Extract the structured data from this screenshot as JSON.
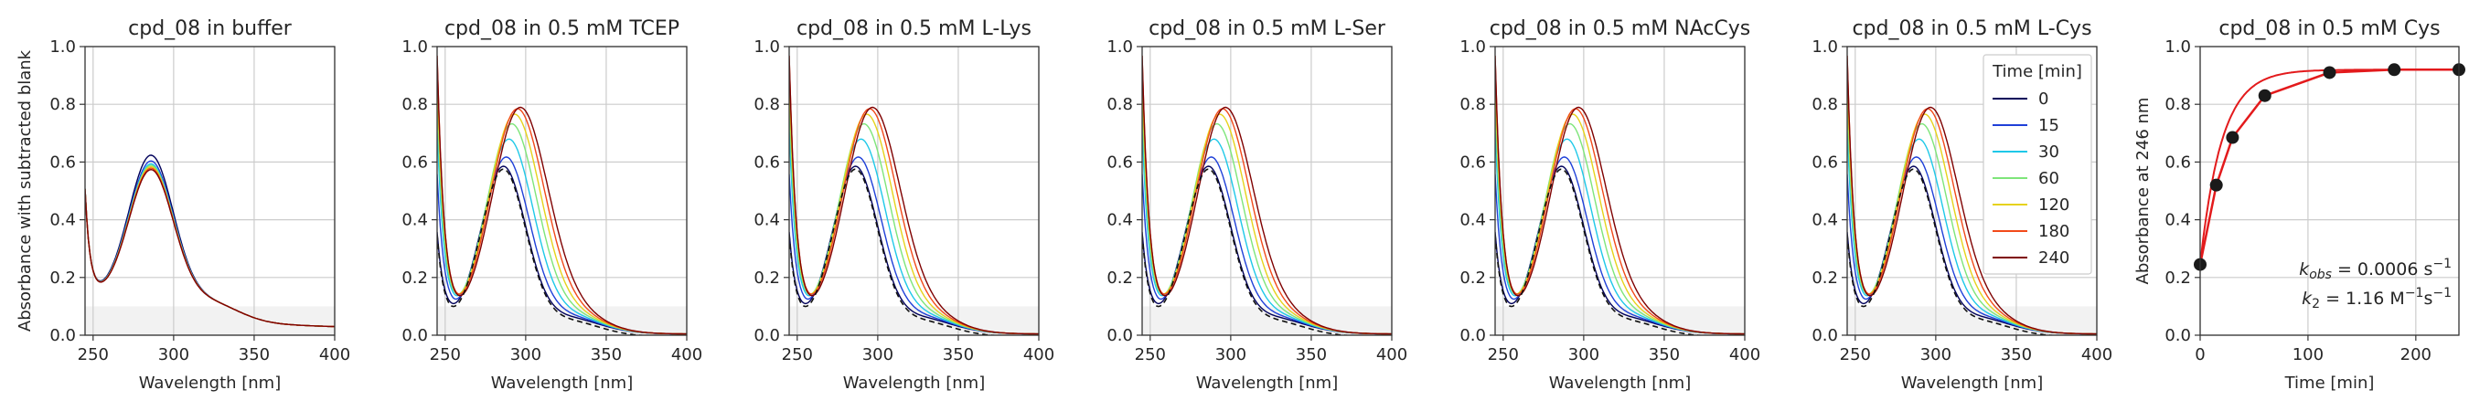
{
  "colors": {
    "time_series": [
      "#00005a",
      "#1f40d8",
      "#1ec8e8",
      "#7ee57a",
      "#e6d21c",
      "#f24a1a",
      "#7f0000"
    ],
    "kinetics_line": "#e31a1c",
    "kinetics_points": "#1a1a1a",
    "grid": "#cccccc",
    "blank_band": "#f2f2f2"
  },
  "chart_data": [
    {
      "type": "line",
      "title": "cpd_08 in buffer",
      "xlabel": "Wavelength [nm]",
      "ylabel": "Absorbance with subtracted blank",
      "xlim": [
        245,
        400
      ],
      "ylim": [
        0,
        1.0
      ],
      "xticks": [
        "250",
        "300",
        "350",
        "400"
      ],
      "yticks": [
        "0.0",
        "0.2",
        "0.4",
        "0.6",
        "0.8",
        "1.0"
      ],
      "grid": true,
      "shaded_band_y": [
        0,
        0.1
      ],
      "series": [
        {
          "peak": 0.59,
          "tail": 0.3
        },
        {
          "peak": 0.57,
          "tail": 0.3
        },
        {
          "peak": 0.56,
          "tail": 0.3
        },
        {
          "peak": 0.555,
          "tail": 0.3
        },
        {
          "peak": 0.55,
          "tail": 0.3
        },
        {
          "peak": 0.545,
          "tail": 0.3
        },
        {
          "peak": 0.54,
          "tail": 0.3
        }
      ]
    },
    {
      "type": "line",
      "title": "cpd_08 in 0.5 mM TCEP",
      "xlabel": "Wavelength [nm]",
      "ylabel": "",
      "xlim": [
        245,
        400
      ],
      "ylim": [
        0,
        1.0
      ],
      "xticks": [
        "250",
        "300",
        "350",
        "400"
      ],
      "yticks": [
        "0.0",
        "0.2",
        "0.4",
        "0.6",
        "0.8",
        "1.0"
      ],
      "grid": true,
      "shaded_band_y": [
        0,
        0.1
      ],
      "series": [
        {
          "peak": 0.6,
          "tail": 0.32
        },
        {
          "peak": 0.63,
          "tail": 0.52
        },
        {
          "peak": 0.69,
          "tail": 0.68
        },
        {
          "peak": 0.74,
          "tail": 0.78
        },
        {
          "peak": 0.77,
          "tail": 0.86
        },
        {
          "peak": 0.785,
          "tail": 0.93
        },
        {
          "peak": 0.785,
          "tail": 0.93
        }
      ]
    },
    {
      "type": "line",
      "title": "cpd_08 in 0.5 mM L-Lys",
      "xlabel": "Wavelength [nm]",
      "ylabel": "",
      "xlim": [
        245,
        400
      ],
      "ylim": [
        0,
        1.0
      ],
      "xticks": [
        "250",
        "300",
        "350",
        "400"
      ],
      "yticks": [
        "0.0",
        "0.2",
        "0.4",
        "0.6",
        "0.8",
        "1.0"
      ],
      "grid": true,
      "shaded_band_y": [
        0,
        0.1
      ],
      "series": [
        {
          "peak": 0.6,
          "tail": 0.32
        },
        {
          "peak": 0.63,
          "tail": 0.52
        },
        {
          "peak": 0.69,
          "tail": 0.68
        },
        {
          "peak": 0.74,
          "tail": 0.78
        },
        {
          "peak": 0.77,
          "tail": 0.86
        },
        {
          "peak": 0.785,
          "tail": 0.93
        },
        {
          "peak": 0.785,
          "tail": 0.93
        }
      ]
    },
    {
      "type": "line",
      "title": "cpd_08 in 0.5 mM L-Ser",
      "xlabel": "Wavelength [nm]",
      "ylabel": "",
      "xlim": [
        245,
        400
      ],
      "ylim": [
        0,
        1.0
      ],
      "xticks": [
        "250",
        "300",
        "350",
        "400"
      ],
      "yticks": [
        "0.0",
        "0.2",
        "0.4",
        "0.6",
        "0.8",
        "1.0"
      ],
      "grid": true,
      "shaded_band_y": [
        0,
        0.1
      ],
      "series": [
        {
          "peak": 0.6,
          "tail": 0.32
        },
        {
          "peak": 0.63,
          "tail": 0.52
        },
        {
          "peak": 0.69,
          "tail": 0.68
        },
        {
          "peak": 0.74,
          "tail": 0.78
        },
        {
          "peak": 0.77,
          "tail": 0.86
        },
        {
          "peak": 0.785,
          "tail": 0.93
        },
        {
          "peak": 0.785,
          "tail": 0.93
        }
      ]
    },
    {
      "type": "line",
      "title": "cpd_08 in 0.5 mM NAcCys",
      "xlabel": "Wavelength [nm]",
      "ylabel": "",
      "xlim": [
        245,
        400
      ],
      "ylim": [
        0,
        1.0
      ],
      "xticks": [
        "250",
        "300",
        "350",
        "400"
      ],
      "yticks": [
        "0.0",
        "0.2",
        "0.4",
        "0.6",
        "0.8",
        "1.0"
      ],
      "grid": true,
      "shaded_band_y": [
        0,
        0.1
      ],
      "series": [
        {
          "peak": 0.6,
          "tail": 0.32
        },
        {
          "peak": 0.63,
          "tail": 0.52
        },
        {
          "peak": 0.69,
          "tail": 0.68
        },
        {
          "peak": 0.74,
          "tail": 0.78
        },
        {
          "peak": 0.77,
          "tail": 0.86
        },
        {
          "peak": 0.785,
          "tail": 0.93
        },
        {
          "peak": 0.785,
          "tail": 0.93
        }
      ]
    },
    {
      "type": "line",
      "title": "cpd_08 in 0.5 mM L-Cys",
      "xlabel": "Wavelength [nm]",
      "ylabel": "",
      "xlim": [
        245,
        400
      ],
      "ylim": [
        0,
        1.0
      ],
      "xticks": [
        "250",
        "300",
        "350",
        "400"
      ],
      "yticks": [
        "0.0",
        "0.2",
        "0.4",
        "0.6",
        "0.8",
        "1.0"
      ],
      "grid": true,
      "shaded_band_y": [
        0,
        0.1
      ],
      "legend": {
        "title": "Time [min]",
        "placement": "top-right",
        "entries": [
          "0",
          "15",
          "30",
          "60",
          "120",
          "180",
          "240"
        ]
      },
      "series": [
        {
          "name": "0",
          "peak": 0.6,
          "tail": 0.32
        },
        {
          "name": "15",
          "peak": 0.63,
          "tail": 0.52
        },
        {
          "name": "30",
          "peak": 0.69,
          "tail": 0.68
        },
        {
          "name": "60",
          "peak": 0.74,
          "tail": 0.78
        },
        {
          "name": "120",
          "peak": 0.77,
          "tail": 0.86
        },
        {
          "name": "180",
          "peak": 0.785,
          "tail": 0.93
        },
        {
          "name": "240",
          "peak": 0.785,
          "tail": 0.93
        }
      ]
    },
    {
      "type": "scatter",
      "title": "cpd_08 in 0.5 mM Cys",
      "xlabel": "Time [min]",
      "ylabel": "Absorbance at 246 nm",
      "xlim": [
        0,
        240
      ],
      "ylim": [
        0,
        1.0
      ],
      "xticks": [
        "0",
        "100",
        "200"
      ],
      "yticks": [
        "0.0",
        "0.2",
        "0.4",
        "0.6",
        "0.8",
        "1.0"
      ],
      "grid": true,
      "x": [
        0,
        15,
        30,
        60,
        120,
        180,
        240
      ],
      "y": [
        0.245,
        0.52,
        0.685,
        0.83,
        0.91,
        0.92,
        0.92
      ],
      "annotation_kobs": "= 0.0006 s",
      "annotation_k2": "= 1.16 M",
      "annotation_k2_tail": "s"
    }
  ]
}
